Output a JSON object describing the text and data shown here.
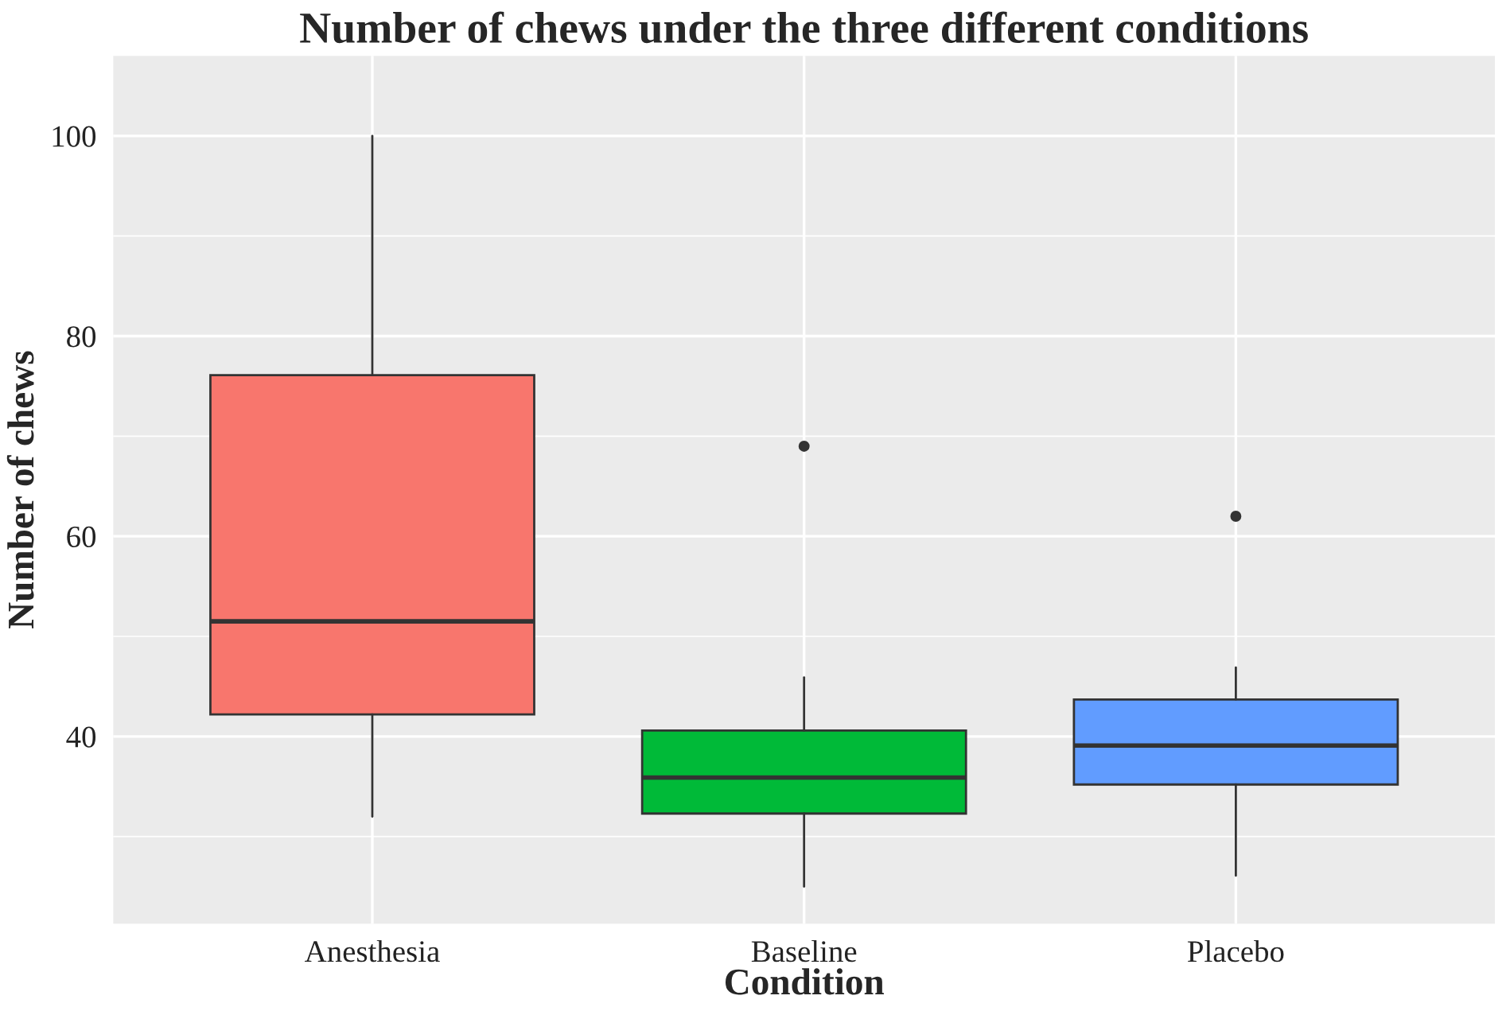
{
  "chart_data": {
    "type": "box",
    "title": "Number of chews under the three different conditions",
    "xlabel": "Condition",
    "ylabel": "Number of chews",
    "categories": [
      "Anesthesia",
      "Baseline",
      "Placebo"
    ],
    "colors": [
      "#f8766d",
      "#00ba38",
      "#619cff"
    ],
    "boxes": [
      {
        "low": 32,
        "q1": 42.2,
        "median": 51.5,
        "q3": 76.1,
        "high": 100
      },
      {
        "low": 25,
        "q1": 32.3,
        "median": 35.9,
        "q3": 40.6,
        "high": 45.9,
        "outliers": [
          69
        ]
      },
      {
        "low": 26.1,
        "q1": 35.2,
        "median": 39.1,
        "q3": 43.7,
        "high": 46.9,
        "outliers": [
          62
        ]
      }
    ],
    "ylim": [
      21.3,
      108
    ],
    "yticks": [
      40,
      60,
      80,
      100
    ],
    "grid": true,
    "legend": false
  }
}
